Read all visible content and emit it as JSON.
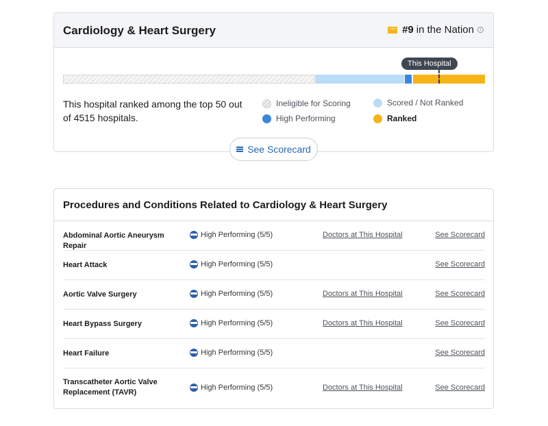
{
  "specialty": {
    "title": "Cardiology & Heart Surgery",
    "rank_number": "#9",
    "rank_suffix": "in the Nation",
    "info_icon": "i",
    "marker_label": "This Hospital",
    "summary": "This hospital ranked among the top 50 out of 4515 hospitals.",
    "legend": {
      "ineligible": "Ineligible for Scoring",
      "high_performing": "High Performing",
      "scored": "Scored / Not Ranked",
      "ranked": "Ranked"
    },
    "scorecard_button": "See Scorecard",
    "colors": {
      "ranked": "#f6b418",
      "high_performing": "#3b86d8",
      "scored": "#b9dcf7",
      "link": "#2767b3"
    }
  },
  "procedures": {
    "title": "Procedures and Conditions Related to Cardiology & Heart Surgery",
    "rows": [
      {
        "name": "Abdominal Aortic Aneurysm Repair",
        "rating": "High Performing (5/5)",
        "doctors": "Doctors at This Hospital",
        "scorecard": "See Scorecard"
      },
      {
        "name": "Heart Attack",
        "rating": "High Performing (5/5)",
        "doctors": "",
        "scorecard": "See Scorecard"
      },
      {
        "name": "Aortic Valve Surgery",
        "rating": "High Performing (5/5)",
        "doctors": "Doctors at This Hospital",
        "scorecard": "See Scorecard"
      },
      {
        "name": "Heart Bypass Surgery",
        "rating": "High Performing (5/5)",
        "doctors": "Doctors at This Hospital",
        "scorecard": "See Scorecard"
      },
      {
        "name": "Heart Failure",
        "rating": "High Performing (5/5)",
        "doctors": "",
        "scorecard": "See Scorecard"
      },
      {
        "name": "Transcatheter Aortic Valve Replacement (TAVR)",
        "rating": "High Performing (5/5)",
        "doctors": "Doctors at This Hospital",
        "scorecard": "See Scorecard"
      }
    ]
  }
}
